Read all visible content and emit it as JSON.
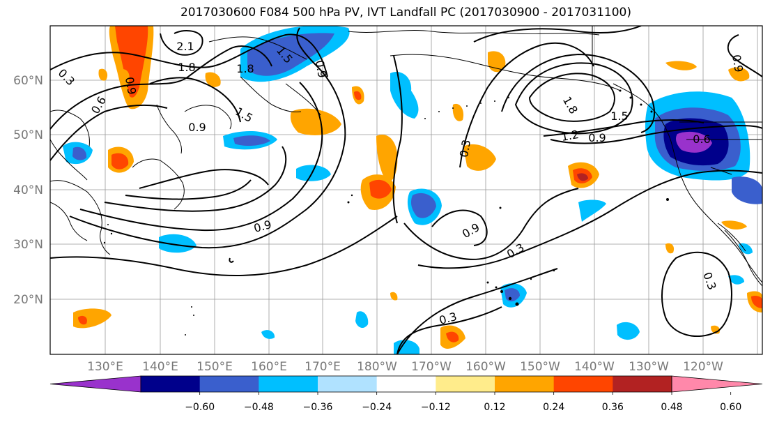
{
  "title": "2017030600 F084 500 hPa PV, IVT Landfall PC (2017030900 - 2017031100)",
  "lat_labels": [
    "60°N",
    "50°N",
    "40°N",
    "30°N",
    "20°N"
  ],
  "lon_labels": [
    "130°E",
    "140°E",
    "150°E",
    "160°E",
    "170°E",
    "180°W",
    "170°W",
    "160°W",
    "150°W",
    "140°W",
    "130°W",
    "120°W"
  ],
  "colorbar": {
    "colors": [
      "#9932cc",
      "#00008b",
      "#3a5fcd",
      "#00bfff",
      "#b0e2ff",
      "#ffffff",
      "#ffec8b",
      "#ffa500",
      "#ff4500",
      "#b22222",
      "#ff88aa"
    ],
    "tick_labels": [
      "−0.60",
      "−0.48",
      "−0.36",
      "−0.24",
      "−0.12",
      "0.12",
      "0.24",
      "0.36",
      "0.48",
      "0.60"
    ]
  },
  "contour_labels": [
    "2.1",
    "1.8",
    "1.8",
    "1.5",
    "0.9",
    "0.6",
    "0.3",
    "0.9",
    "1.5",
    "0.9",
    "0.9",
    "0.3",
    "0.3",
    "0.9",
    "0.3",
    "1.8",
    "1.5",
    "1.2",
    "0.9",
    "0.6",
    "0.3",
    "0.9"
  ],
  "map_extent": {
    "lon": [
      "120°E",
      "250°E"
    ],
    "lat": [
      "10°N",
      "70°N"
    ]
  }
}
